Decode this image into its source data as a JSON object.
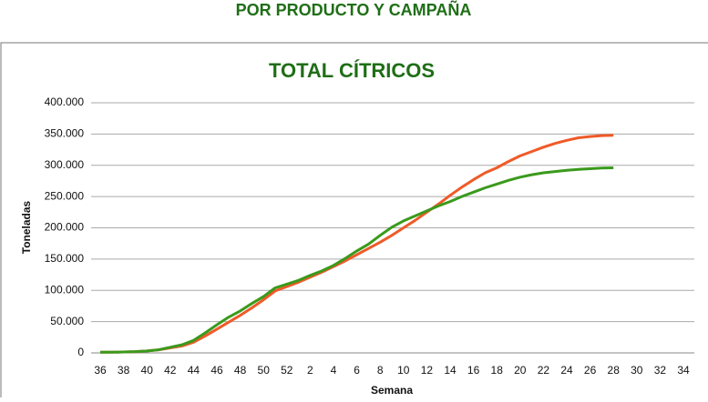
{
  "header": "POR  PRODUCTO Y CAMPAÑA",
  "chart_data": {
    "type": "line",
    "title": "TOTAL CÍTRICOS",
    "x_label": "Semana",
    "y_label": "Toneladas",
    "categories": [
      "36",
      null,
      "38",
      null,
      "40",
      null,
      "42",
      null,
      "44",
      null,
      "46",
      null,
      "48",
      null,
      "50",
      null,
      "52",
      null,
      "2",
      null,
      "4",
      null,
      "6",
      null,
      "8",
      null,
      "10",
      null,
      "12",
      null,
      "14",
      null,
      "16",
      null,
      "18",
      null,
      "20",
      null,
      "22",
      null,
      "24",
      null,
      "26",
      null,
      "28",
      null,
      "30",
      null,
      "32",
      null,
      "34"
    ],
    "series": [
      {
        "color": "#f05a28",
        "values": [
          1000,
          1000,
          1500,
          2000,
          3000,
          5000,
          8000,
          11000,
          17000,
          27000,
          38000,
          49000,
          60000,
          72000,
          85000,
          99000,
          106000,
          113000,
          121000,
          129000,
          138000,
          147000,
          157000,
          167000,
          177000,
          188000,
          200000,
          212000,
          225000,
          238000,
          252000,
          265000,
          277000,
          288000,
          296000,
          306000,
          315000,
          322000,
          329000,
          335000,
          340000,
          344000,
          346000,
          347500,
          348000,
          null,
          null,
          null,
          null,
          null,
          null
        ]
      },
      {
        "color": "#3a9a1c",
        "values": [
          1000,
          1000,
          1500,
          2000,
          3000,
          5000,
          9000,
          13000,
          20000,
          32000,
          45000,
          57000,
          67000,
          79000,
          90000,
          104000,
          110000,
          116000,
          124000,
          131000,
          140000,
          151000,
          163000,
          174000,
          188000,
          201000,
          211000,
          219000,
          227000,
          235000,
          242000,
          250000,
          257000,
          264000,
          270000,
          276000,
          281000,
          285000,
          288000,
          290000,
          292000,
          293500,
          294500,
          295500,
          296000,
          null,
          null,
          null,
          null,
          null,
          null
        ]
      }
    ],
    "ylim": [
      0,
      400000
    ],
    "yticks": [
      0,
      {
        "value": 50000,
        "label": "50.000"
      },
      {
        "value": 100000,
        "label": "100.000"
      },
      {
        "value": 150000,
        "label": "150.000"
      },
      {
        "value": 200000,
        "label": "200.000"
      },
      {
        "value": 250000,
        "label": "250.000"
      },
      {
        "value": 300000,
        "label": "300.000"
      },
      {
        "value": 350000,
        "label": "350.000"
      },
      {
        "value": 400000,
        "label": "400.000"
      }
    ],
    "grid": true
  }
}
